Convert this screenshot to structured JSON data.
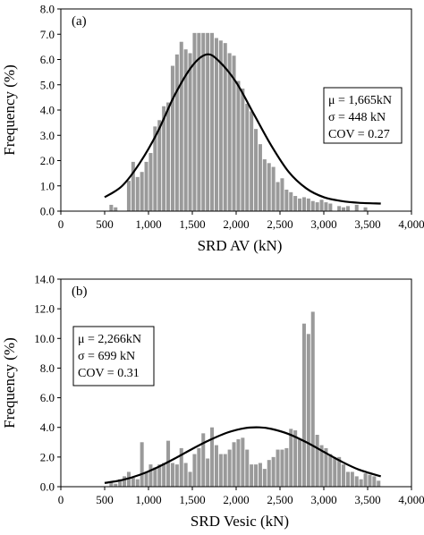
{
  "chart_data": [
    {
      "type": "bar",
      "panel_label": "(a)",
      "xlabel": "SRD AV (kN)",
      "ylabel": "Frequency (%)",
      "xlim": [
        0,
        4000
      ],
      "ylim": [
        0,
        8
      ],
      "x_ticks": [
        "0",
        "500",
        "1,000",
        "1,500",
        "2,000",
        "2,500",
        "3,000",
        "3,500",
        "4,000"
      ],
      "y_ticks": [
        "0.0",
        "1.0",
        "2.0",
        "3.0",
        "4.0",
        "5.0",
        "6.0",
        "7.0",
        "8.0"
      ],
      "stats": [
        "μ = 1,665kN",
        "σ = 448 kN",
        "COV = 0.27"
      ],
      "bin_width": 50,
      "bins_x": [
        575,
        625,
        775,
        825,
        875,
        925,
        975,
        1025,
        1075,
        1125,
        1175,
        1225,
        1275,
        1325,
        1375,
        1425,
        1475,
        1525,
        1575,
        1625,
        1675,
        1725,
        1775,
        1825,
        1875,
        1925,
        1975,
        2025,
        2075,
        2125,
        2175,
        2225,
        2275,
        2325,
        2375,
        2425,
        2475,
        2525,
        2575,
        2625,
        2675,
        2725,
        2775,
        2825,
        2875,
        2925,
        2975,
        3025,
        3075,
        3175,
        3225,
        3275,
        3375,
        3475
      ],
      "bins_y": [
        0.25,
        0.15,
        1.2,
        1.95,
        1.35,
        1.55,
        1.95,
        2.3,
        3.35,
        3.6,
        4.15,
        4.3,
        5.75,
        6.2,
        6.7,
        6.4,
        6.25,
        7.05,
        7.05,
        7.05,
        7.05,
        7.05,
        6.85,
        6.75,
        6.65,
        6.25,
        6.15,
        5.15,
        4.85,
        4.25,
        3.95,
        3.25,
        2.65,
        2.05,
        1.9,
        1.75,
        1.15,
        1.3,
        0.85,
        0.75,
        0.6,
        0.5,
        0.55,
        0.5,
        0.4,
        0.35,
        0.45,
        0.35,
        0.3,
        0.2,
        0.15,
        0.2,
        0.25,
        0.15
      ],
      "fit": {
        "x": [
          500,
          700,
          900,
          1100,
          1300,
          1500,
          1665,
          1800,
          2000,
          2200,
          2400,
          2600,
          2800,
          3000,
          3200,
          3400,
          3650
        ],
        "y": [
          0.55,
          1.0,
          1.9,
          3.1,
          4.6,
          5.75,
          6.2,
          5.95,
          5.1,
          3.85,
          2.6,
          1.55,
          0.9,
          0.55,
          0.4,
          0.33,
          0.3
        ]
      }
    },
    {
      "type": "bar",
      "panel_label": "(b)",
      "xlabel": "SRD Vesic (kN)",
      "ylabel": "Frequency (%)",
      "xlim": [
        0,
        4000
      ],
      "ylim": [
        0,
        14
      ],
      "x_ticks": [
        "0",
        "500",
        "1,000",
        "1,500",
        "2,000",
        "2,500",
        "3,000",
        "3,500",
        "4,000"
      ],
      "y_ticks": [
        "0.0",
        "2.0",
        "4.0",
        "6.0",
        "8.0",
        "10.0",
        "12.0",
        "14.0"
      ],
      "stats": [
        "μ = 2,266kN",
        "σ = 699 kN",
        "COV = 0.31"
      ],
      "bin_width": 50,
      "bins_x": [
        575,
        625,
        675,
        725,
        775,
        825,
        875,
        925,
        975,
        1025,
        1075,
        1125,
        1175,
        1225,
        1275,
        1325,
        1375,
        1425,
        1475,
        1525,
        1575,
        1625,
        1675,
        1725,
        1775,
        1825,
        1875,
        1925,
        1975,
        2025,
        2075,
        2125,
        2175,
        2225,
        2275,
        2325,
        2375,
        2425,
        2475,
        2525,
        2575,
        2625,
        2675,
        2725,
        2775,
        2825,
        2875,
        2925,
        2975,
        3025,
        3075,
        3125,
        3175,
        3225,
        3275,
        3325,
        3375,
        3425,
        3475,
        3525,
        3575,
        3625
      ],
      "bins_y": [
        0.3,
        0.2,
        0.5,
        0.7,
        1.0,
        0.6,
        0.5,
        3.0,
        1.0,
        1.5,
        1.3,
        1.5,
        1.6,
        3.1,
        1.6,
        1.5,
        2.6,
        1.6,
        1.0,
        2.2,
        2.6,
        3.6,
        1.9,
        4.0,
        2.8,
        2.2,
        2.2,
        2.5,
        3.0,
        3.2,
        3.3,
        2.5,
        1.5,
        1.5,
        1.6,
        1.2,
        1.8,
        2.0,
        2.5,
        2.5,
        2.6,
        3.9,
        3.8,
        3.2,
        11.0,
        10.3,
        11.8,
        3.5,
        2.8,
        2.6,
        2.2,
        2.0,
        2.0,
        1.5,
        1.0,
        1.0,
        0.7,
        0.5,
        0.9,
        0.8,
        0.7,
        0.4
      ],
      "fit": {
        "x": [
          500,
          700,
          900,
          1100,
          1300,
          1500,
          1700,
          1900,
          2100,
          2266,
          2400,
          2600,
          2800,
          3000,
          3200,
          3400,
          3650
        ],
        "y": [
          0.25,
          0.45,
          0.8,
          1.3,
          1.9,
          2.55,
          3.15,
          3.65,
          3.95,
          4.0,
          3.9,
          3.55,
          3.0,
          2.35,
          1.7,
          1.15,
          0.7
        ]
      }
    }
  ]
}
